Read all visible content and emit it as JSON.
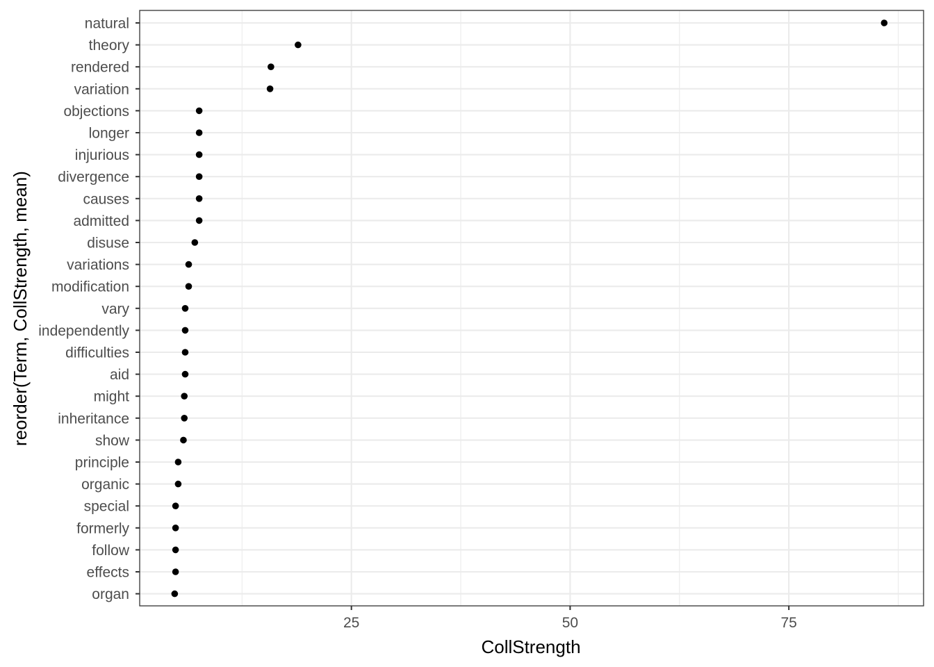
{
  "chart_data": {
    "type": "scatter",
    "title": "",
    "xlabel": "CollStrength",
    "ylabel": "reorder(Term, CollStrength, mean)",
    "xlim": [
      0.8,
      90.4
    ],
    "x_ticks": [
      25,
      50,
      75
    ],
    "x_tick_labels": [
      "25",
      "50",
      "75"
    ],
    "grid": true,
    "legend": "none",
    "colors": {
      "point": "#000000",
      "grid": "#ebebeb",
      "panel_border": "#333333",
      "tick_text": "#4d4d4d"
    },
    "categories": [
      "natural",
      "theory",
      "rendered",
      "variation",
      "objections",
      "longer",
      "injurious",
      "divergence",
      "causes",
      "admitted",
      "disuse",
      "variations",
      "modification",
      "vary",
      "independently",
      "difficulties",
      "aid",
      "might",
      "inheritance",
      "show",
      "principle",
      "organic",
      "special",
      "formerly",
      "follow",
      "effects",
      "organ"
    ],
    "values": [
      85.9,
      18.9,
      15.8,
      15.7,
      7.6,
      7.6,
      7.6,
      7.6,
      7.6,
      7.6,
      7.1,
      6.4,
      6.4,
      6.0,
      6.0,
      6.0,
      6.0,
      5.9,
      5.9,
      5.8,
      5.2,
      5.2,
      4.9,
      4.9,
      4.9,
      4.9,
      4.8
    ]
  }
}
